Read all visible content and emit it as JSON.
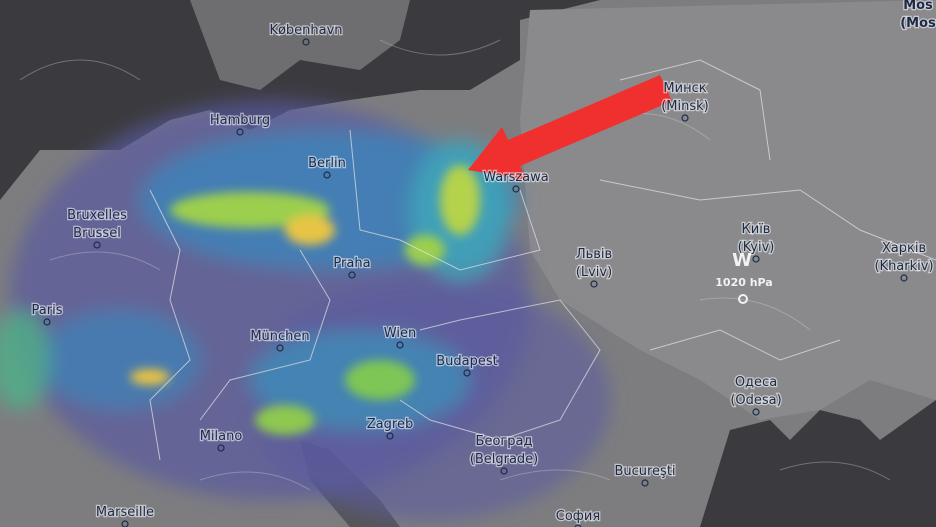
{
  "cities": [
    {
      "name": "Mos",
      "alt": "(Mos"
    },
    {
      "name": "København"
    },
    {
      "name": "Hamburg"
    },
    {
      "name": "Berlin"
    },
    {
      "name": "Минск",
      "alt": "(Minsk)"
    },
    {
      "name": "Warszawa"
    },
    {
      "name": "Bruxelles",
      "alt": "Brussel"
    },
    {
      "name": "Praha"
    },
    {
      "name": "Львів",
      "alt": "(Lviv)"
    },
    {
      "name": "Київ",
      "alt": "(Kyiv)"
    },
    {
      "name": "Харків",
      "alt": "(Kharkiv)"
    },
    {
      "name": "Paris"
    },
    {
      "name": "München"
    },
    {
      "name": "Wien"
    },
    {
      "name": "Budapest"
    },
    {
      "name": "Одеса",
      "alt": "(Odesa)"
    },
    {
      "name": "Milano"
    },
    {
      "name": "Zagreb"
    },
    {
      "name": "Београд",
      "alt": "(Belgrade)"
    },
    {
      "name": "Bucureşti"
    },
    {
      "name": "Marseille"
    },
    {
      "name": "София"
    }
  ],
  "pressure": {
    "symbol": "W",
    "label": "1020 hPa"
  }
}
